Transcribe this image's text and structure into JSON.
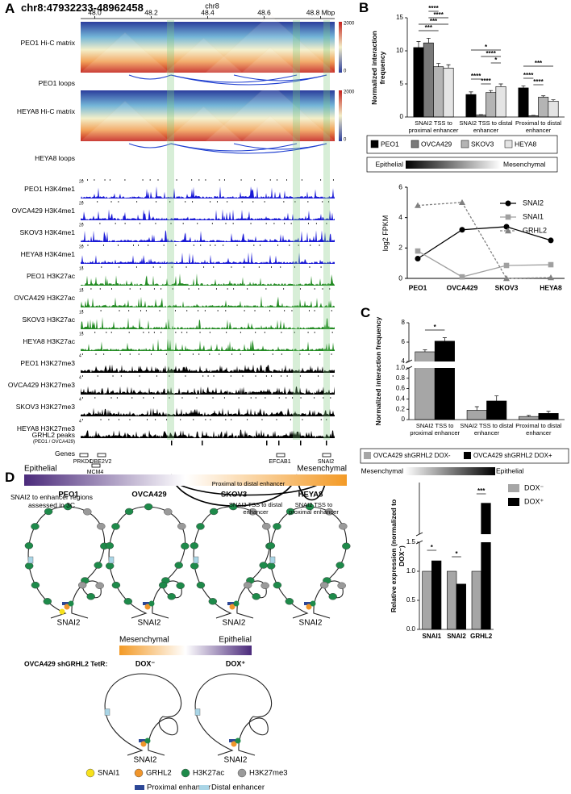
{
  "panel_a": {
    "label": "A",
    "title": "chr8:47932233-48962458",
    "chr": "chr8",
    "xlim": [
      47.95,
      48.85
    ],
    "xticks": [
      {
        "value": 48.0,
        "label": "48.0"
      },
      48.2,
      48.4,
      48.6,
      {
        "value": 48.8,
        "label": "48.8 Mbp"
      }
    ],
    "hic": [
      {
        "label": "PEO1 Hi-C matrix",
        "max": 2000,
        "min": 0
      },
      {
        "label": "HEYA8 Hi-C matrix",
        "max": 2000,
        "min": 0
      }
    ],
    "loops": [
      "PEO1 loops",
      "HEYA8 loops"
    ],
    "tracks": [
      {
        "label": "PEO1 H3K4me1",
        "scale": 20,
        "color": "#1a1ad6"
      },
      {
        "label": "OVCA429 H3K4me1",
        "scale": 20,
        "color": "#1a1ad6"
      },
      {
        "label": "SKOV3 H3K4me1",
        "scale": 20,
        "color": "#1a1ad6"
      },
      {
        "label": "HEYA8 H3K4me1",
        "scale": 20,
        "color": "#1a1ad6"
      },
      {
        "label": "PEO1 H3K27ac",
        "scale": 15,
        "color": "#238b23"
      },
      {
        "label": "OVCA429 H3K27ac",
        "scale": 15,
        "color": "#238b23"
      },
      {
        "label": "SKOV3 H3K27ac",
        "scale": 15,
        "color": "#238b23"
      },
      {
        "label": "HEYA8 H3K27ac",
        "scale": 15,
        "color": "#238b23"
      },
      {
        "label": "PEO1 H3K27me3",
        "scale": 4,
        "color": "#000000"
      },
      {
        "label": "OVCA429 H3K27me3",
        "scale": 4,
        "color": "#000000"
      },
      {
        "label": "SKOV3 H3K27me3",
        "scale": 4,
        "color": "#000000"
      },
      {
        "label": "HEYA8 H3K27me3",
        "scale": 4,
        "color": "#000000"
      }
    ],
    "grhl2_label": "GRHL2 peaks",
    "grhl2_sub": "(PEO1 / OVCA429)",
    "genes_label": "Genes",
    "genes": [
      "PRKDC",
      "UBE2V2",
      "MCM4",
      "EFCAB1",
      "SNAI2"
    ],
    "regions_label": "SNAI2 to enhancer regions assessed in 3C",
    "arcs": [
      "Proximal to distal enhancer",
      "SNAI2 TSS to distal enhancer",
      "SNAI2 TSS to proximal enhancer"
    ]
  },
  "chart_data": [
    {
      "panel": "B",
      "type": "bar",
      "ylabel": "Normalized interaction frequency",
      "categories": [
        "SNAI2 TSS to proximal enhancer",
        "SNAI2 TSS to distal enhancer",
        "Proximal to distal enhancer"
      ],
      "series": [
        {
          "name": "PEO1",
          "color": "#000000",
          "values": [
            10.5,
            3.4,
            4.4
          ],
          "errors": [
            0.9,
            0.4,
            0.3
          ]
        },
        {
          "name": "OVCA429",
          "color": "#7a7a7a",
          "values": [
            11.2,
            0.3,
            0.2
          ],
          "errors": [
            0.7,
            0.05,
            0.05
          ]
        },
        {
          "name": "SKOV3",
          "color": "#b4b4b4",
          "values": [
            7.6,
            3.7,
            3.0
          ],
          "errors": [
            0.5,
            0.3,
            0.2
          ]
        },
        {
          "name": "HEYA8",
          "color": "#e4e4e4",
          "values": [
            7.4,
            4.6,
            2.4
          ],
          "errors": [
            0.5,
            0.4,
            0.2
          ]
        }
      ],
      "ylim": [
        0,
        15
      ],
      "yticks": [
        0,
        5,
        10,
        15
      ],
      "annotations": [
        "****",
        "****",
        "***",
        "***",
        "*",
        "****",
        "*",
        "****",
        "****",
        "***",
        "****",
        "****"
      ],
      "gradient_labels": [
        "Epithelial",
        "Mesenchymal"
      ]
    },
    {
      "type": "line",
      "ylabel": "log2 FPKM",
      "categories": [
        "PEO1",
        "OVCA429",
        "SKOV3",
        "HEYA8"
      ],
      "series": [
        {
          "name": "SNAI2",
          "color": "#000000",
          "marker": "circle",
          "dashed": false,
          "values": [
            1.3,
            3.2,
            3.4,
            2.5
          ]
        },
        {
          "name": "SNAI1",
          "color": "#a0a0a0",
          "marker": "square",
          "dashed": false,
          "values": [
            1.8,
            0.1,
            0.85,
            0.9
          ]
        },
        {
          "name": "GRHL2",
          "color": "#808080",
          "marker": "triangle",
          "dashed": true,
          "values": [
            4.8,
            5.0,
            0.0,
            0.05
          ]
        }
      ],
      "ylim": [
        0,
        6
      ],
      "yticks": [
        0,
        2,
        4,
        6
      ]
    },
    {
      "panel": "C",
      "type": "bar",
      "ylabel": "Normalized interaction frequency",
      "categories": [
        "SNAI2 TSS to proximal enhancer",
        "SNAI2 TSS to distal enhancer",
        "Proximal to distal enhancer"
      ],
      "series": [
        {
          "name": "OVCA429 shGRHL2 DOX-",
          "color": "#a6a6a6",
          "values": [
            5.0,
            0.18,
            0.06
          ],
          "errors": [
            0.2,
            0.07,
            0.02
          ]
        },
        {
          "name": "OVCA429 shGRHL2 DOX+",
          "color": "#000000",
          "values": [
            6.1,
            0.36,
            0.12
          ],
          "errors": [
            0.35,
            0.1,
            0.04
          ]
        }
      ],
      "ylim": [
        0,
        8
      ],
      "ybreak": [
        1,
        4
      ],
      "yticks": [
        0,
        0.2,
        0.4,
        0.6,
        0.8,
        {
          "value": 1,
          "label": "1.0"
        },
        4,
        6,
        8
      ],
      "annotations": [
        "*"
      ],
      "gradient_labels": [
        "Mesenchymal",
        "Epithelial"
      ]
    },
    {
      "type": "bar",
      "ylabel": "Relative expression (normalized to DOX⁻)",
      "categories": [
        "SNAI1",
        "SNAI2",
        "GRHL2"
      ],
      "series": [
        {
          "name": "DOX⁻",
          "color": "#a6a6a6",
          "values": [
            1,
            1,
            1
          ]
        },
        {
          "name": "DOX⁺",
          "color": "#000000",
          "values": [
            1.18,
            0.78,
            2.6
          ]
        }
      ],
      "ylim": [
        0,
        3
      ],
      "ybreak": [
        1.5,
        2
      ],
      "yticks": [
        {
          "value": 0,
          "label": "0.0"
        },
        0.5,
        {
          "value": 1,
          "label": "1.0"
        },
        1.5
      ],
      "annotations": [
        "*",
        "*",
        "***"
      ]
    }
  ],
  "panel_d": {
    "label": "D",
    "gradient": [
      "Epithelial",
      "Mesenchymal"
    ],
    "cell_lines": [
      "PEO1",
      "OVCA429",
      "SKOV3",
      "HEYA8"
    ],
    "locus": "SNAI2",
    "gradient2": [
      "Mesenchymal",
      "Epithelial"
    ],
    "condition": "OVCA429 shGRHL2 TetR:",
    "doses": [
      "DOX⁻",
      "DOX⁺"
    ],
    "legend": [
      {
        "label": "SNAI1",
        "color": "#f7e11c"
      },
      {
        "label": "GRHL2",
        "color": "#f0952b"
      },
      {
        "label": "H3K27ac",
        "color": "#1e8a4a"
      },
      {
        "label": "H3K27me3",
        "color": "#9a9a9a"
      },
      {
        "label": "Proximal enhancer",
        "color": "#2c4796"
      },
      {
        "label": "Distal enhancer",
        "color": "#a9d5e6"
      }
    ]
  }
}
